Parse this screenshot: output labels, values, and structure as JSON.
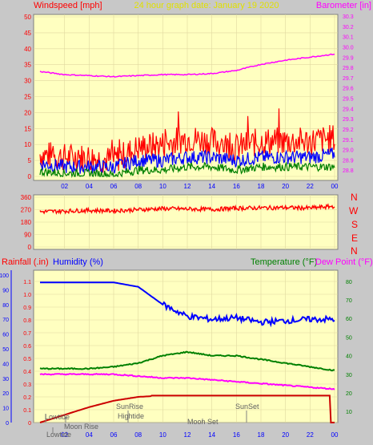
{
  "header": {
    "left_label": "Windspeed [mph]",
    "center_label": "24 hour graph date:  January 19 2020",
    "right_label": "Barometer [in]"
  },
  "bottom_header": {
    "rainfall_label": "Rainfall (.in)",
    "humidity_label": "Humidity (%)",
    "temperature_label": "Temperature (°F)",
    "dewpoint_label": "Dew Point (°F)"
  },
  "compass": [
    "N",
    "W",
    "S",
    "E",
    "N"
  ],
  "astro": {
    "lowtide": "Lowtide",
    "moonrise": "Moon Rise",
    "sunrise": "SunRise",
    "hightide": "Hightide",
    "moonset": "Moon Set",
    "sunset": "SunSet"
  },
  "colors": {
    "plot_bg": "#ffffc0",
    "frame_bg": "#c8c8c8",
    "wind_gust": "#ff0000",
    "wind_avg": "#0000ff",
    "wind_min": "#008000",
    "barometer": "#ff00ff",
    "direction": "#ff0000",
    "humidity": "#0000ff",
    "temperature": "#008000",
    "dewpoint": "#ff00ff",
    "rainfall": "#cc0000"
  },
  "chart_data": [
    {
      "type": "line",
      "name": "wind",
      "x_ticks": [
        "02",
        "04",
        "06",
        "08",
        "10",
        "12",
        "14",
        "16",
        "18",
        "20",
        "22",
        "00"
      ],
      "left_axis": {
        "label": "Windspeed [mph]",
        "ticks": [
          0,
          5,
          10,
          15,
          20,
          25,
          30,
          35,
          40,
          45,
          50
        ],
        "ylim": [
          0,
          50
        ]
      },
      "right_axis": {
        "label": "Barometer [in]",
        "ticks": [
          28.8,
          28.9,
          29.0,
          29.1,
          29.2,
          29.3,
          29.4,
          29.5,
          29.6,
          29.7,
          29.8,
          29.9,
          30.0,
          30.1,
          30.2,
          30.3
        ],
        "ylim": [
          28.7,
          30.3
        ]
      },
      "x": [
        0,
        2,
        4,
        6,
        8,
        10,
        12,
        14,
        16,
        18,
        20,
        22,
        24
      ],
      "series": [
        {
          "values": [
            7,
            6,
            6,
            5,
            9,
            10,
            12,
            11,
            9,
            11,
            11,
            11,
            12
          ]
        },
        {
          "values": [
            4,
            3,
            3,
            3,
            5,
            5,
            6,
            6,
            5,
            6,
            6,
            6,
            7
          ]
        },
        {
          "values": [
            1.5,
            1,
            1,
            0.5,
            2,
            2,
            3,
            3,
            2,
            3,
            3,
            3,
            3
          ]
        },
        {
          "values": [
            29.76,
            29.73,
            29.72,
            29.71,
            29.72,
            29.73,
            29.73,
            29.74,
            29.77,
            29.83,
            29.87,
            29.9,
            29.93
          ]
        }
      ]
    },
    {
      "type": "line",
      "name": "wind_direction",
      "left_axis": {
        "ticks": [
          0,
          90,
          180,
          270,
          360
        ],
        "ylim": [
          0,
          360
        ]
      },
      "x_ticks": [
        "02",
        "04",
        "06",
        "08",
        "10",
        "12",
        "14",
        "16",
        "18",
        "20",
        "22",
        "00"
      ],
      "x": [
        0,
        2,
        4,
        6,
        8,
        10,
        12,
        14,
        16,
        18,
        20,
        22,
        24
      ],
      "series": [
        {
          "values": [
            255,
            260,
            265,
            262,
            270,
            278,
            275,
            272,
            280,
            283,
            285,
            282,
            295
          ]
        }
      ]
    },
    {
      "type": "line",
      "name": "temperature_humidity_rain",
      "x_ticks": [
        "02",
        "04",
        "06",
        "08",
        "10",
        "12",
        "14",
        "16",
        "18",
        "20",
        "22",
        "00"
      ],
      "humidity_axis": {
        "label": "Humidity (%)",
        "ticks": [
          0,
          10,
          20,
          30,
          40,
          50,
          60,
          70,
          80,
          90,
          100
        ],
        "ylim": [
          0,
          100
        ]
      },
      "rain_axis": {
        "label": "Rainfall (.in)",
        "ticks": [
          0,
          0.1,
          0.2,
          0.3,
          0.4,
          0.5,
          0.6,
          0.7,
          0.8,
          0.9,
          1.0,
          1.1
        ],
        "ylim": [
          0,
          1.15
        ]
      },
      "temp_axis": {
        "label": "Temperature (°F)",
        "ticks": [
          10,
          20,
          30,
          40,
          50,
          60,
          70,
          80
        ],
        "ylim": [
          4,
          86
        ]
      },
      "x": [
        0,
        2,
        4,
        6,
        8,
        10,
        12,
        14,
        16,
        18,
        20,
        22,
        24
      ],
      "series": [
        {
          "values": [
            95,
            95,
            95,
            95,
            92,
            80,
            72,
            70,
            71,
            68,
            69,
            70,
            70
          ]
        },
        {
          "values": [
            33,
            33,
            33,
            34,
            36,
            40,
            42,
            40,
            40,
            38,
            36,
            34,
            32
          ]
        },
        {
          "values": [
            30,
            30,
            30,
            30,
            29,
            28,
            28,
            27,
            26,
            25,
            24,
            23,
            22
          ]
        },
        {
          "values": [
            0,
            0.06,
            0.12,
            0.17,
            0.2,
            0.21,
            0.21,
            0.21,
            0.21,
            0.21,
            0.21,
            0.21,
            0.0
          ]
        }
      ]
    }
  ]
}
